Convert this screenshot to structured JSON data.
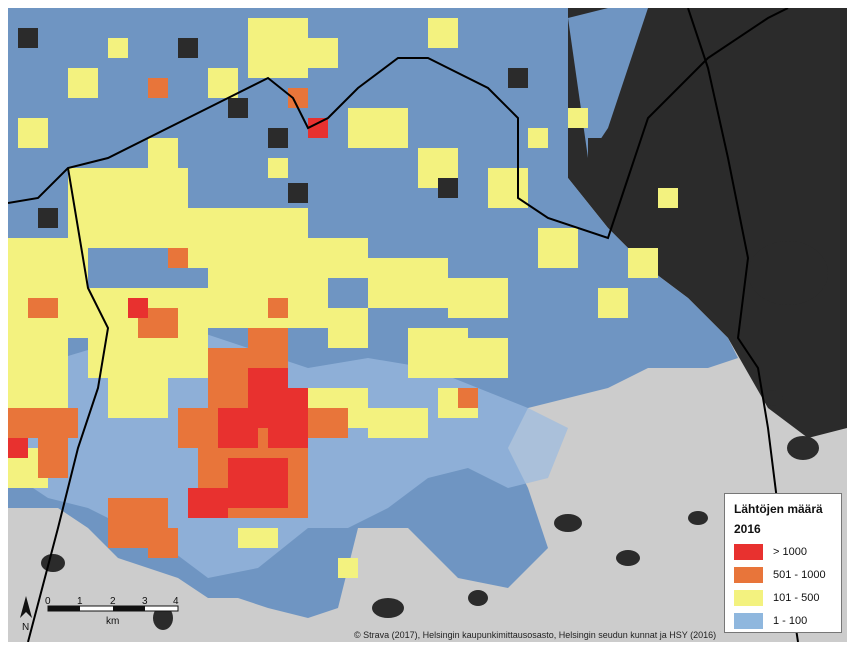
{
  "legend": {
    "title": "Lähtöjen määrä",
    "subtitle": "2016",
    "classes": [
      {
        "label": "> 1000",
        "color": "#e8312f"
      },
      {
        "label": "501 - 1000",
        "color": "#e8753a"
      },
      {
        "label": "101 - 500",
        "color": "#f3f27f"
      },
      {
        "label": "1 - 100",
        "color": "#8fb7de"
      }
    ]
  },
  "scalebar": {
    "ticks": [
      "0",
      "1",
      "2",
      "3",
      "4"
    ],
    "unit": "km",
    "north": "N"
  },
  "credit": "© Strava (2017), Helsingin kaupunkimittausosasto, Helsingin seudun kunnat ja HSY (2016)",
  "colors": {
    "sea": "#cccccc",
    "land_dark": "#2b2b2b",
    "coverage_blue": "#6f95c2",
    "boundary": "#000000"
  }
}
